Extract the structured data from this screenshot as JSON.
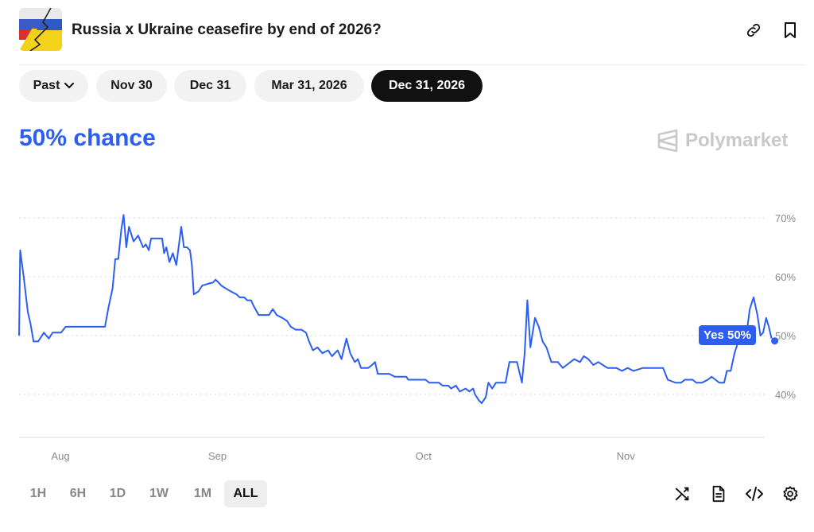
{
  "header": {
    "title": "Russia x Ukraine ceasefire by end of 2026?",
    "thumbnail_icon": "russia-ukraine-flag-image",
    "link_icon": "link-icon",
    "bookmark_icon": "bookmark-icon"
  },
  "date_tabs": [
    {
      "label": "Past",
      "icon": "chevron-down-icon"
    },
    {
      "label": "Nov 30"
    },
    {
      "label": "Dec 31"
    },
    {
      "label": "Mar 31, 2026"
    },
    {
      "label": "Dec 31, 2026",
      "selected": true
    }
  ],
  "chance_text": "50% chance",
  "brand": "Polymarket",
  "colors": {
    "accent": "#2c5ef0",
    "active_tab": "#111111",
    "grid": "#d9d9d9"
  },
  "tooltip": {
    "label": "Yes 50%"
  },
  "time_ranges": [
    {
      "label": "1H"
    },
    {
      "label": "6H"
    },
    {
      "label": "1D"
    },
    {
      "label": "1W"
    },
    {
      "label": "1M"
    },
    {
      "label": "ALL",
      "selected": true
    }
  ],
  "toolbar_icons": [
    "shuffle-icon",
    "document-icon",
    "code-icon",
    "settings-gear-icon"
  ],
  "chart_data": {
    "type": "line",
    "y_tick_labels": [
      "70%",
      "60%",
      "50%",
      "40%"
    ],
    "x_tick_labels": [
      "Aug",
      "Sep",
      "Oct",
      "Nov"
    ],
    "ylim": [
      32,
      72
    ],
    "grid": true,
    "series": [
      {
        "color": "#2c5ef0",
        "points": [
          [
            0.0,
            50
          ],
          [
            0.3,
            64.5
          ],
          [
            1.2,
            60
          ],
          [
            2.3,
            54
          ],
          [
            3.0,
            52
          ],
          [
            3.8,
            49
          ],
          [
            5.0,
            49
          ],
          [
            6.5,
            50.5
          ],
          [
            7.8,
            49.5
          ],
          [
            8.8,
            50.5
          ],
          [
            11.0,
            50.5
          ],
          [
            12.2,
            51.5
          ],
          [
            22.5,
            51.5
          ],
          [
            23.5,
            55
          ],
          [
            24.5,
            58
          ],
          [
            25.2,
            63
          ],
          [
            26.0,
            63
          ],
          [
            26.8,
            68
          ],
          [
            27.4,
            70.5
          ],
          [
            28.1,
            65
          ],
          [
            28.8,
            68.5
          ],
          [
            30.0,
            66
          ],
          [
            31.2,
            67
          ],
          [
            32.5,
            65
          ],
          [
            33.2,
            65.5
          ],
          [
            34.0,
            64.5
          ],
          [
            34.6,
            66.5
          ],
          [
            37.5,
            66.5
          ],
          [
            38.0,
            64
          ],
          [
            38.6,
            65
          ],
          [
            39.4,
            62.5
          ],
          [
            40.3,
            64
          ],
          [
            41.2,
            62
          ],
          [
            42.5,
            68.5
          ],
          [
            43.2,
            65
          ],
          [
            44.0,
            65
          ],
          [
            44.8,
            64.5
          ],
          [
            45.3,
            62
          ],
          [
            45.8,
            57
          ],
          [
            47.0,
            57.5
          ],
          [
            48.0,
            58.5
          ],
          [
            49.5,
            58.8
          ],
          [
            50.8,
            59
          ],
          [
            51.5,
            59.5
          ],
          [
            52.3,
            59
          ],
          [
            53.0,
            58.5
          ],
          [
            54.2,
            58
          ],
          [
            55.5,
            57.5
          ],
          [
            57.0,
            57
          ],
          [
            57.8,
            56.5
          ],
          [
            59.0,
            56.5
          ],
          [
            59.8,
            56
          ],
          [
            60.8,
            56
          ],
          [
            61.5,
            55
          ],
          [
            62.8,
            53.5
          ],
          [
            65.5,
            53.5
          ],
          [
            66.5,
            54.5
          ],
          [
            67.5,
            53.5
          ],
          [
            69.0,
            53
          ],
          [
            70.2,
            52.5
          ],
          [
            71.2,
            51.5
          ],
          [
            72.5,
            51
          ],
          [
            74.0,
            51
          ],
          [
            75.2,
            50.5
          ],
          [
            76.0,
            49
          ],
          [
            77.0,
            47.5
          ],
          [
            78.2,
            48
          ],
          [
            79.5,
            47
          ],
          [
            81.0,
            47.5
          ],
          [
            82.0,
            46.5
          ],
          [
            83.5,
            47.5
          ],
          [
            84.5,
            46
          ],
          [
            85.8,
            49.5
          ],
          [
            86.8,
            47
          ],
          [
            88.0,
            45.5
          ],
          [
            88.8,
            46
          ],
          [
            89.6,
            44.5
          ],
          [
            91.5,
            44.5
          ],
          [
            92.5,
            45
          ],
          [
            93.3,
            45.5
          ],
          [
            94.0,
            43.5
          ],
          [
            97.0,
            43.5
          ],
          [
            98.5,
            43
          ],
          [
            101.5,
            43
          ],
          [
            102.0,
            42.5
          ],
          [
            106.5,
            42.5
          ],
          [
            107.5,
            42
          ],
          [
            110.0,
            42
          ],
          [
            111.0,
            41.5
          ],
          [
            112.5,
            41.5
          ],
          [
            113.2,
            41
          ],
          [
            114.5,
            41.5
          ],
          [
            115.5,
            40.5
          ],
          [
            117.0,
            41
          ],
          [
            118.0,
            40.5
          ],
          [
            119.0,
            41
          ],
          [
            119.5,
            40
          ],
          [
            120.5,
            39
          ],
          [
            121.2,
            38.5
          ],
          [
            122.3,
            39.5
          ],
          [
            123.0,
            42
          ],
          [
            124.0,
            41
          ],
          [
            125.0,
            42
          ],
          [
            127.5,
            42
          ],
          [
            128.5,
            45.5
          ],
          [
            130.5,
            45.5
          ],
          [
            131.8,
            42
          ],
          [
            132.5,
            47
          ],
          [
            133.2,
            56
          ],
          [
            134.0,
            48
          ],
          [
            135.2,
            53
          ],
          [
            136.2,
            51.5
          ],
          [
            137.2,
            49
          ],
          [
            138.2,
            48
          ],
          [
            139.5,
            45.5
          ],
          [
            141.2,
            45.5
          ],
          [
            142.5,
            44.5
          ],
          [
            143.5,
            45
          ],
          [
            144.5,
            45.5
          ],
          [
            145.5,
            46
          ],
          [
            147.0,
            45.5
          ],
          [
            148.0,
            46.5
          ],
          [
            149.2,
            46
          ],
          [
            150.5,
            45
          ],
          [
            151.8,
            45.5
          ],
          [
            153.0,
            45
          ],
          [
            154.2,
            44.5
          ],
          [
            156.5,
            44.5
          ],
          [
            158.0,
            44
          ],
          [
            159.5,
            44.5
          ],
          [
            161.0,
            44
          ],
          [
            163.5,
            44.5
          ],
          [
            166.5,
            44.5
          ],
          [
            168.8,
            44.5
          ],
          [
            170.0,
            42.5
          ],
          [
            172.0,
            42
          ],
          [
            173.5,
            42
          ],
          [
            174.5,
            42.5
          ],
          [
            176.5,
            42.5
          ],
          [
            177.5,
            42
          ],
          [
            179.0,
            42
          ],
          [
            180.5,
            42.5
          ],
          [
            181.5,
            43
          ],
          [
            182.5,
            42.5
          ],
          [
            183.5,
            42
          ],
          [
            184.8,
            42
          ],
          [
            185.5,
            44
          ],
          [
            186.5,
            44
          ],
          [
            187.5,
            47
          ],
          [
            188.5,
            49
          ],
          [
            189.5,
            48.5
          ],
          [
            190.3,
            49.5
          ],
          [
            190.8,
            51
          ],
          [
            191.5,
            54.5
          ],
          [
            192.5,
            56.5
          ],
          [
            193.5,
            53.5
          ],
          [
            194.3,
            50
          ],
          [
            195.0,
            50.5
          ],
          [
            195.8,
            53
          ],
          [
            196.5,
            51.5
          ],
          [
            197.2,
            49.5
          ]
        ]
      }
    ]
  }
}
